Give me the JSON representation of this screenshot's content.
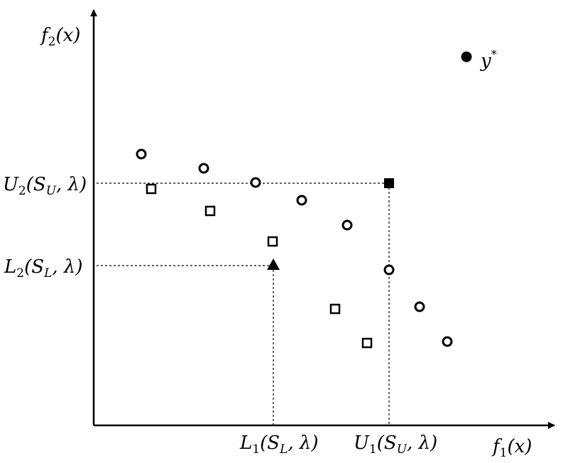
{
  "axes": {
    "x_label": {
      "name": "f",
      "sub": "1",
      "arg": "(x)"
    },
    "y_label": {
      "name": "f",
      "sub": "2",
      "arg": "(x)"
    }
  },
  "ideal_point": {
    "name": "y",
    "sup": "*"
  },
  "bound_labels": {
    "u2": {
      "name": "U",
      "sub": "2",
      "args_open": "(S",
      "args_sub": "U",
      "args_close": ", λ)"
    },
    "l2": {
      "name": "L",
      "sub": "2",
      "args_open": "(S",
      "args_sub": "L",
      "args_close": ", λ)"
    },
    "l1": {
      "name": "L",
      "sub": "1",
      "args_open": "(S",
      "args_sub": "L",
      "args_close": ", λ)"
    },
    "u1": {
      "name": "U",
      "sub": "1",
      "args_open": "(S",
      "args_sub": "U",
      "args_close": ", λ)"
    }
  },
  "colors": {
    "ink": "#000000",
    "background": "#ffffff"
  }
}
